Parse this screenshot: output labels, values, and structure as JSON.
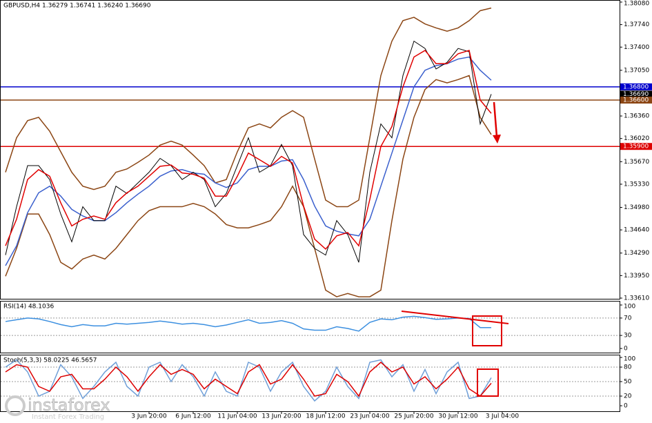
{
  "chart_data": [
    {
      "type": "line",
      "title": "GBPUSD,H4  1.36279 1.36741 1.36240 1.36690",
      "categories": [
        null,
        null,
        null,
        null,
        null,
        null,
        null,
        null,
        null,
        null,
        null,
        null,
        null,
        "3 Jun 20:00",
        null,
        null,
        null,
        "6 Jun 12:00",
        null,
        null,
        null,
        "11 Jun 04:00",
        null,
        null,
        null,
        "13 Jun 20:00",
        null,
        null,
        null,
        "18 Jun 12:00",
        null,
        null,
        null,
        "23 Jun 04:00",
        null,
        null,
        null,
        "25 Jun 20:00",
        null,
        null,
        null,
        "30 Jun 12:00",
        null,
        null,
        null,
        "3 Jul 04:00"
      ],
      "series": [
        {
          "color": "#8b4513",
          "values": [
            1.3551,
            1.3603,
            1.3629,
            1.3634,
            1.3613,
            1.3582,
            1.3551,
            1.353,
            1.3525,
            1.353,
            1.3551,
            1.3556,
            1.3566,
            1.3577,
            1.3592,
            1.3598,
            1.3592,
            1.3577,
            1.3561,
            1.3535,
            1.354,
            1.3582,
            1.3618,
            1.3624,
            1.3618,
            1.3634,
            1.3644,
            1.3634,
            1.3571,
            1.3509,
            1.3499,
            1.3499,
            1.3509,
            1.3603,
            1.3697,
            1.3749,
            1.378,
            1.3785,
            1.3775,
            1.3769,
            1.3764,
            1.3769,
            1.378,
            1.3795,
            1.3799,
            null
          ]
        },
        {
          "color": "#8b4513",
          "values": [
            1.3394,
            1.3436,
            1.3488,
            1.3488,
            1.3457,
            1.3415,
            1.3405,
            1.342,
            1.3426,
            1.342,
            1.3436,
            1.3457,
            1.3478,
            1.3493,
            1.3499,
            1.3499,
            1.3499,
            1.3504,
            1.3499,
            1.3488,
            1.3472,
            1.3467,
            1.3467,
            1.3472,
            1.3478,
            1.3499,
            1.353,
            1.3499,
            1.3436,
            1.3373,
            1.3363,
            1.3368,
            1.3363,
            1.3363,
            1.3373,
            1.3478,
            1.3571,
            1.3634,
            1.3676,
            1.3691,
            1.3686,
            1.3691,
            1.3697,
            1.3634,
            1.3608,
            null
          ]
        },
        {
          "color": "#3a5fcd",
          "values": [
            1.341,
            1.344,
            1.349,
            1.352,
            1.353,
            1.3515,
            1.3495,
            1.3485,
            1.3478,
            1.3478,
            1.349,
            1.3505,
            1.3518,
            1.353,
            1.3545,
            1.3553,
            1.3555,
            1.355,
            1.3548,
            1.3535,
            1.3528,
            1.3535,
            1.3555,
            1.356,
            1.356,
            1.3568,
            1.357,
            1.354,
            1.35,
            1.347,
            1.3462,
            1.3458,
            1.3455,
            1.348,
            1.353,
            1.358,
            1.363,
            1.368,
            1.3705,
            1.3712,
            1.3715,
            1.3722,
            1.3725,
            1.3705,
            1.369,
            null
          ]
        },
        {
          "color": "#000000",
          "values": [
            1.3426,
            1.3499,
            1.3561,
            1.3561,
            1.354,
            1.3488,
            1.3446,
            1.3499,
            1.3478,
            1.3478,
            1.353,
            1.3519,
            1.3535,
            1.3551,
            1.3572,
            1.3561,
            1.354,
            1.3551,
            1.354,
            1.3499,
            1.3519,
            1.3561,
            1.3603,
            1.3551,
            1.3561,
            1.3593,
            1.3561,
            1.3457,
            1.3436,
            1.3426,
            1.3478,
            1.3457,
            1.3415,
            1.3551,
            1.3624,
            1.3603,
            1.3697,
            1.3749,
            1.3738,
            1.3707,
            1.3717,
            1.3738,
            1.3733,
            1.3624,
            1.3669,
            null
          ]
        },
        {
          "color": "#e00000",
          "values": [
            1.344,
            1.348,
            1.354,
            1.3555,
            1.3545,
            1.3505,
            1.347,
            1.348,
            1.3485,
            1.348,
            1.3505,
            1.352,
            1.353,
            1.3545,
            1.356,
            1.3562,
            1.355,
            1.3548,
            1.3542,
            1.3515,
            1.3515,
            1.3545,
            1.358,
            1.357,
            1.356,
            1.3575,
            1.3565,
            1.35,
            1.345,
            1.3435,
            1.3455,
            1.346,
            1.344,
            1.351,
            1.359,
            1.362,
            1.368,
            1.3725,
            1.3735,
            1.3715,
            1.3715,
            1.373,
            1.3735,
            1.366,
            1.364,
            null
          ]
        }
      ],
      "ylim": [
        1.3361,
        1.3808
      ],
      "yticks": [
        {
          "value": 1.3808,
          "label": "1.38080"
        },
        {
          "value": 1.3774,
          "label": "1.37740"
        },
        {
          "value": 1.374,
          "label": "1.37400"
        },
        {
          "value": 1.3705,
          "label": "1.37050"
        },
        {
          "value": 1.3636,
          "label": "1.36360"
        },
        {
          "value": 1.3602,
          "label": "1.36020"
        },
        {
          "value": 1.3567,
          "label": "1.35670"
        },
        {
          "value": 1.3533,
          "label": "1.35330"
        },
        {
          "value": 1.3498,
          "label": "1.34980"
        },
        {
          "value": 1.3464,
          "label": "1.34640"
        },
        {
          "value": 1.3429,
          "label": "1.34290"
        },
        {
          "value": 1.3395,
          "label": "1.33950"
        },
        {
          "value": 1.3361,
          "label": "1.33610"
        }
      ],
      "levels": [
        {
          "value": 1.368,
          "label": "1.36800",
          "color": "#0000cc",
          "line": true
        },
        {
          "value": 1.3669,
          "label": "1.36690",
          "color": "#000000",
          "line": false
        },
        {
          "value": 1.366,
          "label": "1.36600",
          "color": "#8b4513",
          "line": true
        },
        {
          "value": 1.359,
          "label": "1.35900",
          "color": "#dd0000",
          "line": true
        }
      ]
    },
    {
      "type": "line",
      "title": "RSI(14) 48.1036",
      "series": [
        {
          "color": "#3b8fe0",
          "values": [
            62,
            66,
            70,
            68,
            62,
            55,
            50,
            55,
            52,
            52,
            58,
            56,
            58,
            60,
            63,
            60,
            56,
            58,
            55,
            50,
            54,
            60,
            66,
            58,
            60,
            64,
            58,
            45,
            42,
            42,
            50,
            46,
            40,
            60,
            68,
            66,
            72,
            74,
            71,
            67,
            68,
            70,
            69,
            48,
            48.1036,
            null
          ]
        }
      ],
      "ylim": [
        0,
        100
      ],
      "yticks": [
        100,
        70,
        30,
        0
      ]
    },
    {
      "type": "line",
      "title": "Stoch(5,3,3) 58.0225 46.5657",
      "series": [
        {
          "color": "#6f9fd8",
          "values": [
            80,
            95,
            70,
            20,
            30,
            85,
            60,
            15,
            40,
            70,
            90,
            40,
            20,
            80,
            90,
            50,
            85,
            60,
            20,
            70,
            30,
            20,
            90,
            80,
            30,
            70,
            90,
            40,
            10,
            30,
            80,
            40,
            15,
            90,
            95,
            60,
            85,
            30,
            75,
            25,
            70,
            90,
            15,
            20,
            58.0225,
            null
          ]
        },
        {
          "color": "#dd0000",
          "values": [
            70,
            85,
            80,
            40,
            30,
            60,
            65,
            35,
            35,
            55,
            80,
            60,
            30,
            60,
            85,
            65,
            75,
            65,
            35,
            55,
            40,
            25,
            70,
            85,
            45,
            55,
            85,
            55,
            20,
            25,
            65,
            50,
            20,
            70,
            90,
            70,
            80,
            45,
            60,
            35,
            55,
            80,
            35,
            20,
            46.5657,
            null
          ]
        }
      ],
      "ylim": [
        0,
        100
      ],
      "yticks": [
        100,
        80,
        50,
        20,
        0
      ]
    }
  ],
  "watermark": {
    "brand": "instaforex",
    "tagline": "Instant Forex Trading"
  }
}
